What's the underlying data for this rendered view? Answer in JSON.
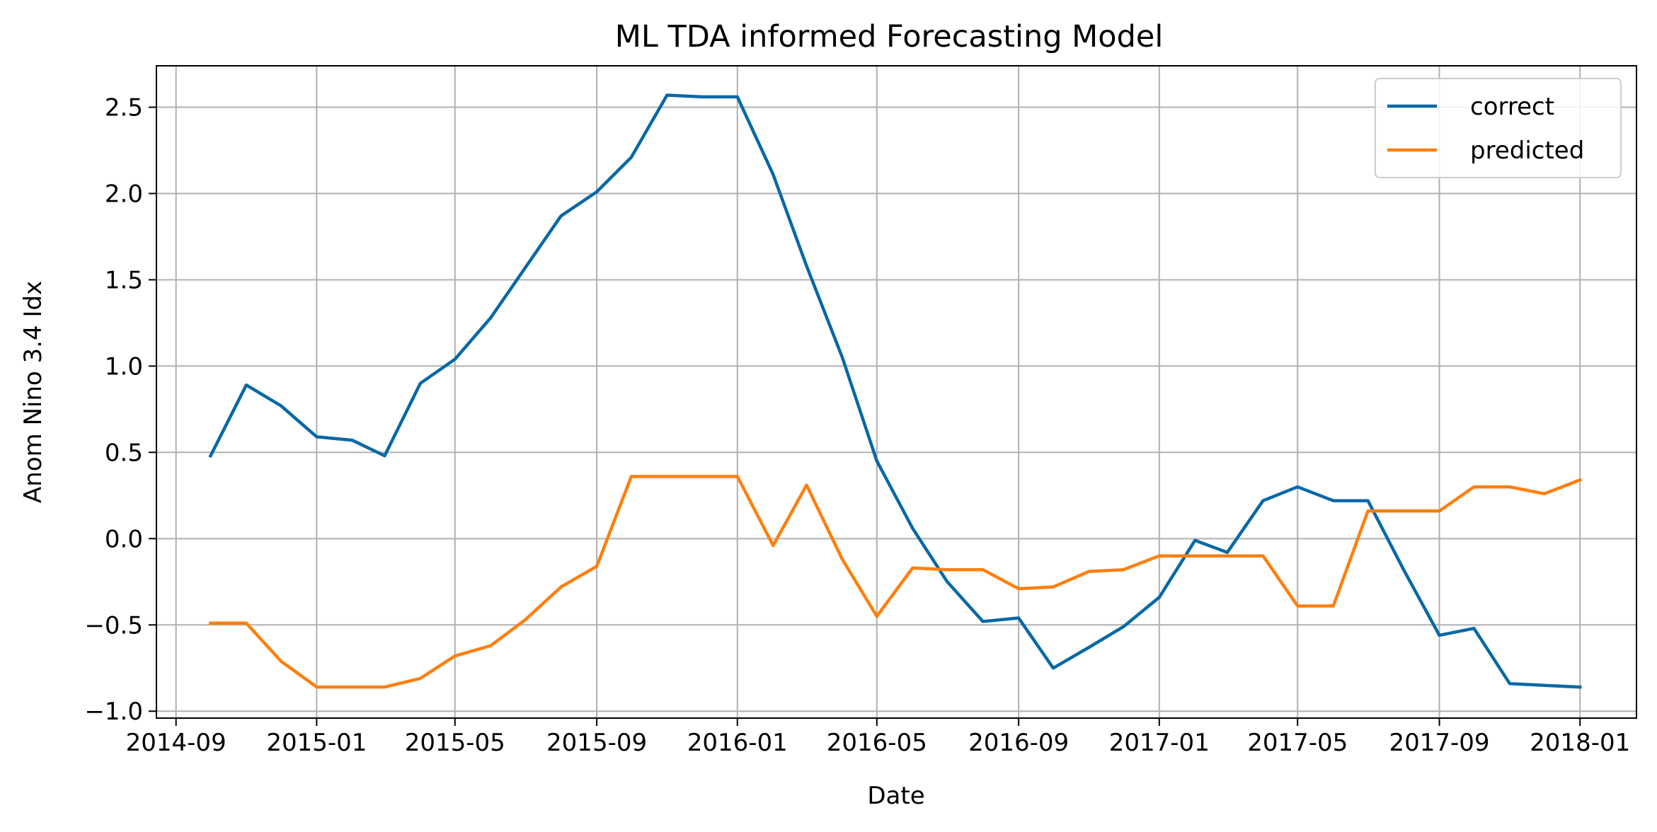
{
  "chart_data": {
    "type": "line",
    "title": "ML TDA informed Forecasting Model",
    "xlabel": "Date",
    "ylabel": "Anom Nino 3.4 Idx",
    "x": [
      "2014-10",
      "2014-11",
      "2014-12",
      "2015-01",
      "2015-02",
      "2015-03",
      "2015-04",
      "2015-05",
      "2015-06",
      "2015-07",
      "2015-08",
      "2015-09",
      "2015-10",
      "2015-11",
      "2015-12",
      "2016-01",
      "2016-02",
      "2016-03",
      "2016-04",
      "2016-05",
      "2016-06",
      "2016-07",
      "2016-08",
      "2016-09",
      "2016-10",
      "2016-11",
      "2016-12",
      "2017-01",
      "2017-02",
      "2017-03",
      "2017-04",
      "2017-05",
      "2017-06",
      "2017-07",
      "2017-08",
      "2017-09",
      "2017-10",
      "2017-11",
      "2017-12",
      "2018-01"
    ],
    "series": [
      {
        "name": "correct",
        "color": "#0868a6",
        "values": [
          0.48,
          0.89,
          0.77,
          0.59,
          0.57,
          0.48,
          0.9,
          1.04,
          1.28,
          1.57,
          1.87,
          2.01,
          2.21,
          2.57,
          2.56,
          2.56,
          2.11,
          1.58,
          1.05,
          0.45,
          0.06,
          -0.25,
          -0.48,
          -0.46,
          -0.75,
          -0.63,
          -0.51,
          -0.34,
          -0.01,
          -0.08,
          0.22,
          0.3,
          0.22,
          0.22,
          -0.18,
          -0.56,
          -0.52,
          -0.84,
          -0.85,
          -0.86
        ]
      },
      {
        "name": "predicted",
        "color": "#ff7f0e",
        "values": [
          -0.49,
          -0.49,
          -0.71,
          -0.86,
          -0.86,
          -0.86,
          -0.81,
          -0.68,
          -0.62,
          -0.47,
          -0.28,
          -0.16,
          0.36,
          0.36,
          0.36,
          0.36,
          -0.04,
          0.31,
          -0.12,
          -0.45,
          -0.17,
          -0.18,
          -0.18,
          -0.29,
          -0.28,
          -0.19,
          -0.18,
          -0.1,
          -0.1,
          -0.1,
          -0.1,
          -0.39,
          -0.39,
          0.16,
          0.16,
          0.16,
          0.3,
          0.3,
          0.26,
          0.34
        ]
      }
    ],
    "xticks": [
      "2014-09",
      "2015-01",
      "2015-05",
      "2015-09",
      "2016-01",
      "2016-05",
      "2016-09",
      "2017-01",
      "2017-05",
      "2017-09",
      "2018-01"
    ],
    "yticks": [
      -1.0,
      -0.5,
      0.0,
      0.5,
      1.0,
      1.5,
      2.0,
      2.5
    ],
    "ytick_labels": [
      "−1.0",
      "−0.5",
      "0.0",
      "0.5",
      "1.0",
      "1.5",
      "2.0",
      "2.5"
    ],
    "xlim": [
      "2014-08-15",
      "2018-02-19"
    ],
    "ylim": [
      -1.04,
      2.74
    ],
    "grid": true,
    "legend_position": "top-right"
  }
}
